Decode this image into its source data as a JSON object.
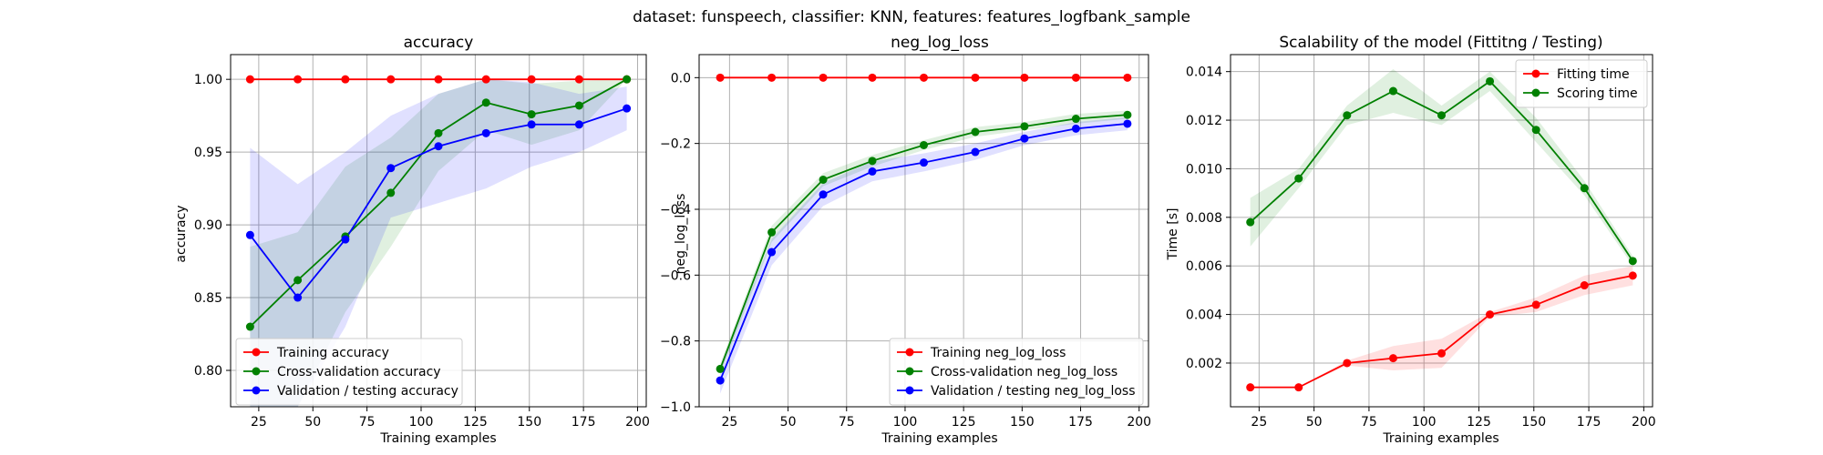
{
  "figure": {
    "suptitle": "dataset: funspeech, classifier: KNN, features: features_logfbank_sample"
  },
  "chart_data": [
    {
      "type": "line",
      "title": "accuracy",
      "xlabel": "Training examples",
      "ylabel": "accuracy",
      "xlim": [
        12,
        204
      ],
      "ylim": [
        0.775,
        1.017
      ],
      "xticks": [
        25,
        50,
        75,
        100,
        125,
        150,
        175,
        200
      ],
      "yticks": [
        0.8,
        0.85,
        0.9,
        0.95,
        1.0
      ],
      "ytick_labels": [
        "0.80",
        "0.85",
        "0.90",
        "0.95",
        "1.00"
      ],
      "grid": true,
      "legend_position": "lower left",
      "x": [
        21,
        43,
        65,
        86,
        108,
        130,
        151,
        173,
        195
      ],
      "series": [
        {
          "name": "Training accuracy",
          "color": "#ff0000",
          "values": [
            1.0,
            1.0,
            1.0,
            1.0,
            1.0,
            1.0,
            1.0,
            1.0,
            1.0
          ],
          "band_lower": [
            1.0,
            1.0,
            1.0,
            1.0,
            1.0,
            1.0,
            1.0,
            1.0,
            1.0
          ],
          "band_upper": [
            1.0,
            1.0,
            1.0,
            1.0,
            1.0,
            1.0,
            1.0,
            1.0,
            1.0
          ]
        },
        {
          "name": "Cross-validation accuracy",
          "color": "#008000",
          "values": [
            0.83,
            0.862,
            0.892,
            0.922,
            0.963,
            0.984,
            0.976,
            0.982,
            1.0
          ],
          "band_lower": [
            0.775,
            0.775,
            0.84,
            0.885,
            0.937,
            0.965,
            0.955,
            0.965,
            1.0
          ],
          "band_upper": [
            0.885,
            0.895,
            0.94,
            0.96,
            0.99,
            1.0,
            0.997,
            0.999,
            1.0
          ]
        },
        {
          "name": "Validation / testing accuracy",
          "color": "#0000ff",
          "values": [
            0.893,
            0.85,
            0.89,
            0.939,
            0.954,
            0.963,
            0.969,
            0.969,
            0.98
          ],
          "band_lower": [
            0.775,
            0.775,
            0.83,
            0.905,
            0.915,
            0.925,
            0.94,
            0.95,
            0.965
          ],
          "band_upper": [
            0.953,
            0.928,
            0.95,
            0.975,
            0.99,
            1.0,
            0.998,
            0.99,
            0.995
          ]
        }
      ]
    },
    {
      "type": "line",
      "title": "neg_log_loss",
      "xlabel": "Training examples",
      "ylabel": "neg_log_loss",
      "xlim": [
        12,
        204
      ],
      "ylim": [
        -1.0,
        0.07
      ],
      "xticks": [
        25,
        50,
        75,
        100,
        125,
        150,
        175,
        200
      ],
      "yticks": [
        -1.0,
        -0.8,
        -0.6,
        -0.4,
        -0.2,
        0.0
      ],
      "ytick_labels": [
        "−1.0",
        "−0.8",
        "−0.6",
        "−0.4",
        "−0.2",
        "0.0"
      ],
      "grid": true,
      "legend_position": "lower right",
      "x": [
        21,
        43,
        65,
        86,
        108,
        130,
        151,
        173,
        195
      ],
      "series": [
        {
          "name": "Training neg_log_loss",
          "color": "#ff0000",
          "values": [
            0.0,
            0.0,
            0.0,
            0.0,
            0.0,
            0.0,
            0.0,
            0.0,
            0.0
          ],
          "band_lower": [
            0.0,
            0.0,
            0.0,
            0.0,
            0.0,
            0.0,
            0.0,
            0.0,
            0.0
          ],
          "band_upper": [
            0.0,
            0.0,
            0.0,
            0.0,
            0.0,
            0.0,
            0.0,
            0.0,
            0.0
          ]
        },
        {
          "name": "Cross-validation neg_log_loss",
          "color": "#008000",
          "values": [
            -0.885,
            -0.47,
            -0.31,
            -0.253,
            -0.205,
            -0.165,
            -0.148,
            -0.125,
            -0.113
          ],
          "band_lower": [
            -0.9,
            -0.5,
            -0.33,
            -0.27,
            -0.22,
            -0.18,
            -0.16,
            -0.14,
            -0.125
          ],
          "band_upper": [
            -0.87,
            -0.45,
            -0.29,
            -0.235,
            -0.19,
            -0.15,
            -0.135,
            -0.11,
            -0.1
          ]
        },
        {
          "name": "Validation / testing neg_log_loss",
          "color": "#0000ff",
          "values": [
            -0.92,
            -0.53,
            -0.355,
            -0.285,
            -0.258,
            -0.226,
            -0.185,
            -0.155,
            -0.14
          ],
          "band_lower": [
            -0.96,
            -0.57,
            -0.39,
            -0.315,
            -0.285,
            -0.25,
            -0.205,
            -0.175,
            -0.16
          ],
          "band_upper": [
            -0.88,
            -0.49,
            -0.32,
            -0.255,
            -0.23,
            -0.2,
            -0.165,
            -0.135,
            -0.12
          ]
        }
      ]
    },
    {
      "type": "line",
      "title": "Scalability of the model (Fittitng / Testing)",
      "xlabel": "Training examples",
      "ylabel": "Time [s]",
      "xlim": [
        12,
        204
      ],
      "ylim": [
        0.0002,
        0.0147
      ],
      "xticks": [
        25,
        50,
        75,
        100,
        125,
        150,
        175,
        200
      ],
      "yticks": [
        0.002,
        0.004,
        0.006,
        0.008,
        0.01,
        0.012,
        0.014
      ],
      "ytick_labels": [
        "0.002",
        "0.004",
        "0.006",
        "0.008",
        "0.010",
        "0.012",
        "0.014"
      ],
      "grid": true,
      "legend_position": "upper right",
      "x": [
        21,
        43,
        65,
        86,
        108,
        130,
        151,
        173,
        195
      ],
      "series": [
        {
          "name": "Fitting time",
          "color": "#ff0000",
          "values": [
            0.001,
            0.001,
            0.002,
            0.0022,
            0.0024,
            0.004,
            0.0044,
            0.0052,
            0.0056
          ],
          "band_lower": [
            0.001,
            0.001,
            0.0019,
            0.0017,
            0.0018,
            0.0039,
            0.0041,
            0.0048,
            0.0052
          ],
          "band_upper": [
            0.001,
            0.001,
            0.0021,
            0.0027,
            0.003,
            0.0041,
            0.0047,
            0.0056,
            0.006
          ]
        },
        {
          "name": "Scoring time",
          "color": "#008000",
          "values": [
            0.0078,
            0.0096,
            0.0122,
            0.0132,
            0.0122,
            0.0136,
            0.0116,
            0.0092,
            0.0062
          ],
          "band_lower": [
            0.0068,
            0.0092,
            0.0118,
            0.0123,
            0.0118,
            0.0132,
            0.0111,
            0.0089,
            0.006
          ],
          "band_upper": [
            0.0088,
            0.01,
            0.0126,
            0.0141,
            0.0126,
            0.014,
            0.0121,
            0.0095,
            0.0064
          ]
        }
      ]
    }
  ]
}
